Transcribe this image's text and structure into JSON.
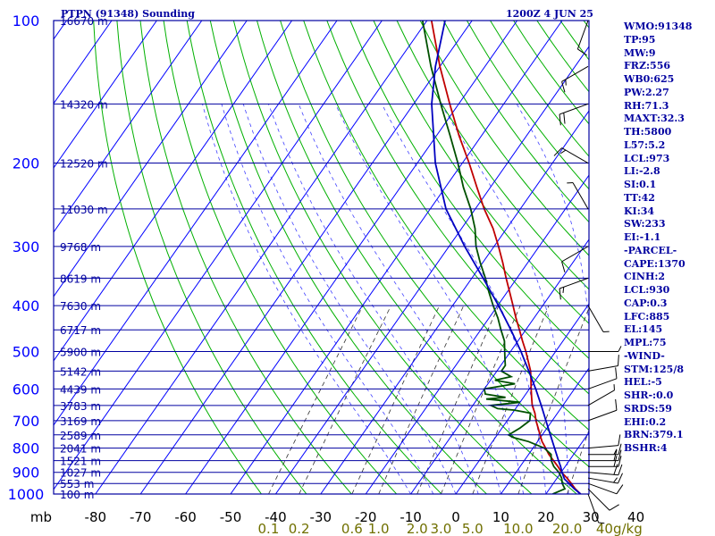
{
  "header": {
    "station": "PTPN (91348) Sounding",
    "valid_time": "1200Z  4 JUN 25"
  },
  "stats": [
    "WMO:91348",
    "TP:95",
    "MW:9",
    "FRZ:556",
    "WB0:625",
    "PW:2.27",
    "RH:71.3",
    "MAXT:32.3",
    "TH:5800",
    "L57:5.2",
    "LCL:973",
    "LI:-2.8",
    "SI:0.1",
    "TT:42",
    "KI:34",
    "SW:233",
    "EI:-1.1",
    "-PARCEL-",
    "CAPE:1370",
    "CINH:2",
    "LCL:930",
    "CAP:0.3",
    "LFC:885",
    "EL:145",
    "MPL:75",
    "-WIND-",
    "STM:125/8",
    "HEL:-5",
    "SHR-:0.0",
    "SRDS:59",
    "EHI:0.2",
    "BRN:379.1",
    "BSHR:4"
  ],
  "colors": {
    "frame": "#0000a0",
    "isotherm": "#0000ff",
    "dry_adiabat": "#00b000",
    "moist_adiabat": "#4040ff",
    "mixing_ratio": "#303030",
    "temperature": "#c00000",
    "dewpoint": "#005000",
    "parcel": "#0000c0",
    "wind": "#000000",
    "pressure_label": "#0000ff",
    "temp_label": "#000000",
    "mixing_label": "#707000"
  },
  "chart_data": {
    "type": "skew-t",
    "pressure_axis": {
      "unit": "mb",
      "ticks": [
        100,
        200,
        300,
        400,
        500,
        600,
        700,
        800,
        900,
        1000
      ],
      "range": [
        1000,
        100
      ],
      "scale": "log"
    },
    "temperature_axis": {
      "unit": "°C",
      "ticks": [
        -80,
        -70,
        -60,
        -50,
        -40,
        -30,
        -20,
        -10,
        0,
        10,
        20,
        30,
        40
      ],
      "tick_labels": [
        "-80",
        "-70",
        "-60",
        "-50",
        "-40",
        "-30",
        "-20",
        "-10",
        "0",
        "10",
        "20",
        "30",
        "40"
      ]
    },
    "mixing_ratio_labels": [
      "0.1",
      "0.2",
      "0.6",
      "1.0",
      "2.0",
      "3.0",
      "5.0",
      "10.0",
      "20.0",
      "40g/kg"
    ],
    "height_levels": [
      {
        "p": 100,
        "label": "16670 m"
      },
      {
        "p": 150,
        "label": "14320 m"
      },
      {
        "p": 200,
        "label": "12520 m"
      },
      {
        "p": 250,
        "label": "11030 m"
      },
      {
        "p": 300,
        "label": "9768 m"
      },
      {
        "p": 350,
        "label": "8619 m"
      },
      {
        "p": 400,
        "label": "7630 m"
      },
      {
        "p": 450,
        "label": "6717 m"
      },
      {
        "p": 500,
        "label": "5900 m"
      },
      {
        "p": 550,
        "label": "5142 m"
      },
      {
        "p": 600,
        "label": "4439 m"
      },
      {
        "p": 650,
        "label": "3783 m"
      },
      {
        "p": 700,
        "label": "3169 m"
      },
      {
        "p": 750,
        "label": "2589 m"
      },
      {
        "p": 800,
        "label": "2041 m"
      },
      {
        "p": 850,
        "label": "1521 m"
      },
      {
        "p": 900,
        "label": "1027 m"
      },
      {
        "p": 950,
        "label": "553 m"
      },
      {
        "p": 1000,
        "label": "100 m"
      }
    ],
    "series": [
      {
        "name": "temperature",
        "points": [
          [
            1000,
            27.7
          ],
          [
            975,
            25.7
          ],
          [
            950,
            24
          ],
          [
            925,
            22.2
          ],
          [
            900,
            20.1
          ],
          [
            875,
            18.4
          ],
          [
            850,
            16.5
          ],
          [
            825,
            14.5
          ],
          [
            800,
            12.8
          ],
          [
            775,
            11
          ],
          [
            750,
            9.5
          ],
          [
            725,
            8
          ],
          [
            700,
            6.4
          ],
          [
            675,
            5
          ],
          [
            650,
            3.2
          ],
          [
            625,
            1.8
          ],
          [
            600,
            0.4
          ],
          [
            575,
            -1
          ],
          [
            550,
            -2.5
          ],
          [
            525,
            -4.5
          ],
          [
            500,
            -6.6
          ],
          [
            475,
            -9
          ],
          [
            450,
            -11.4
          ],
          [
            425,
            -14
          ],
          [
            400,
            -16.6
          ],
          [
            375,
            -19.4
          ],
          [
            350,
            -22.4
          ],
          [
            325,
            -25.5
          ],
          [
            300,
            -29
          ],
          [
            275,
            -33
          ],
          [
            250,
            -38
          ],
          [
            225,
            -43
          ],
          [
            200,
            -48.5
          ],
          [
            175,
            -55
          ],
          [
            150,
            -62
          ],
          [
            125,
            -70
          ],
          [
            100,
            -79
          ]
        ]
      },
      {
        "name": "dewpoint",
        "points": [
          [
            1000,
            21.5
          ],
          [
            975,
            23.4
          ],
          [
            950,
            22
          ],
          [
            925,
            21
          ],
          [
            900,
            19.5
          ],
          [
            875,
            17.5
          ],
          [
            850,
            16
          ],
          [
            825,
            15
          ],
          [
            800,
            12.5
          ],
          [
            775,
            8
          ],
          [
            760,
            4
          ],
          [
            750,
            2.5
          ],
          [
            725,
            4
          ],
          [
            700,
            5
          ],
          [
            675,
            4
          ],
          [
            665,
            0
          ],
          [
            660,
            -4
          ],
          [
            650,
            -6
          ],
          [
            640,
            0
          ],
          [
            630,
            -8
          ],
          [
            625,
            -4
          ],
          [
            615,
            -9
          ],
          [
            600,
            -10
          ],
          [
            585,
            -4
          ],
          [
            575,
            -9
          ],
          [
            565,
            -6
          ],
          [
            550,
            -9
          ],
          [
            535,
            -9
          ],
          [
            520,
            -10
          ],
          [
            500,
            -11.3
          ],
          [
            475,
            -13
          ],
          [
            450,
            -15.5
          ],
          [
            425,
            -18
          ],
          [
            400,
            -21
          ],
          [
            375,
            -24
          ],
          [
            350,
            -27
          ],
          [
            325,
            -30.5
          ],
          [
            300,
            -34
          ],
          [
            275,
            -37
          ],
          [
            250,
            -41
          ],
          [
            225,
            -46
          ],
          [
            200,
            -51
          ],
          [
            175,
            -57
          ],
          [
            150,
            -64
          ],
          [
            125,
            -72
          ],
          [
            100,
            -81
          ]
        ]
      },
      {
        "name": "parcel",
        "points": [
          [
            1000,
            27.7
          ],
          [
            975,
            25.5
          ],
          [
            950,
            23.5
          ],
          [
            930,
            21.8
          ],
          [
            900,
            20.2
          ],
          [
            875,
            19
          ],
          [
            850,
            17.6
          ],
          [
            800,
            14.8
          ],
          [
            750,
            11.8
          ],
          [
            700,
            8.6
          ],
          [
            650,
            5.2
          ],
          [
            600,
            1.4
          ],
          [
            550,
            -2.9
          ],
          [
            500,
            -7.7
          ],
          [
            450,
            -13.3
          ],
          [
            400,
            -19.8
          ],
          [
            350,
            -27.5
          ],
          [
            300,
            -36.5
          ],
          [
            250,
            -46.5
          ],
          [
            200,
            -56
          ],
          [
            150,
            -66
          ],
          [
            125,
            -71
          ],
          [
            100,
            -76
          ]
        ]
      }
    ],
    "winds": [
      {
        "p": 1000,
        "dir": 160,
        "spd": 5
      },
      {
        "p": 975,
        "dir": 135,
        "spd": 10
      },
      {
        "p": 950,
        "dir": 110,
        "spd": 10
      },
      {
        "p": 925,
        "dir": 100,
        "spd": 15
      },
      {
        "p": 900,
        "dir": 95,
        "spd": 20
      },
      {
        "p": 875,
        "dir": 90,
        "spd": 20
      },
      {
        "p": 850,
        "dir": 90,
        "spd": 20
      },
      {
        "p": 825,
        "dir": 90,
        "spd": 15
      },
      {
        "p": 800,
        "dir": 85,
        "spd": 10
      },
      {
        "p": 700,
        "dir": 70,
        "spd": 10
      },
      {
        "p": 650,
        "dir": 60,
        "spd": 5
      },
      {
        "p": 600,
        "dir": 70,
        "spd": 10
      },
      {
        "p": 550,
        "dir": 80,
        "spd": 10
      },
      {
        "p": 500,
        "dir": 90,
        "spd": 5
      },
      {
        "p": 400,
        "dir": 150,
        "spd": 5
      },
      {
        "p": 350,
        "dir": 250,
        "spd": 15
      },
      {
        "p": 300,
        "dir": 240,
        "spd": 10
      },
      {
        "p": 250,
        "dir": 330,
        "spd": 5
      },
      {
        "p": 200,
        "dir": 300,
        "spd": 15
      },
      {
        "p": 150,
        "dir": 250,
        "spd": 20
      },
      {
        "p": 125,
        "dir": 240,
        "spd": 15
      },
      {
        "p": 100,
        "dir": 200,
        "spd": 10
      }
    ],
    "dry_adiabats_theta_k": [
      230,
      240,
      250,
      260,
      270,
      280,
      290,
      300,
      310,
      320,
      330,
      340,
      350,
      360,
      370,
      380,
      390,
      400,
      410,
      420,
      430,
      440,
      450,
      460,
      470,
      480
    ],
    "moist_adiabats_c": [
      -10,
      -5,
      0,
      5,
      10,
      15,
      20,
      25,
      30,
      35
    ],
    "mixing_ratios_gkg": [
      0.1,
      0.2,
      0.6,
      1.0,
      2.0,
      3.0,
      5.0,
      10.0,
      20.0,
      40.0
    ],
    "grid": true
  }
}
